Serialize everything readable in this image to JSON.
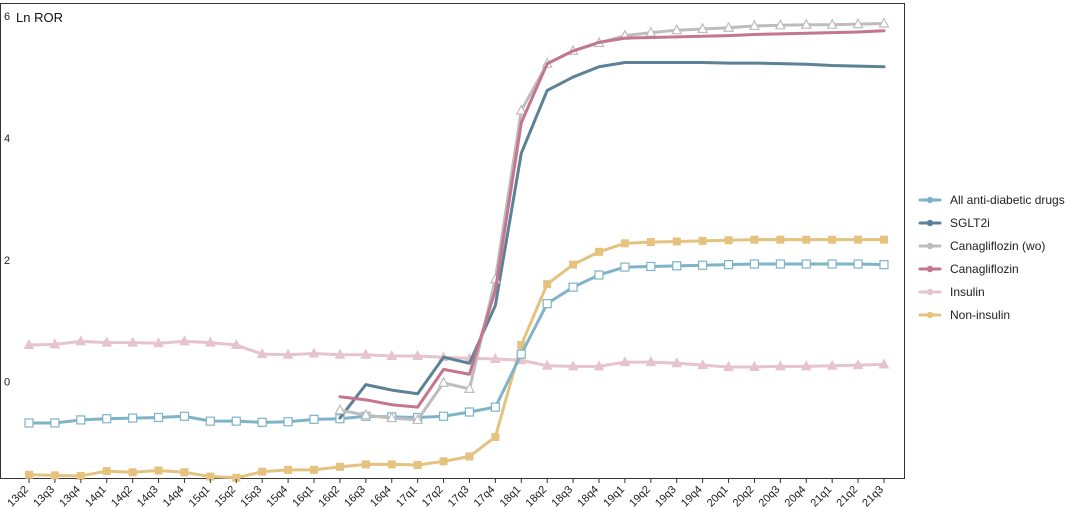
{
  "chart_data": {
    "type": "line",
    "title": "Ln ROR",
    "xlabel": "",
    "ylabel": "",
    "ylim": [
      -1.6,
      6.2
    ],
    "yticks": [
      0,
      2,
      4,
      6
    ],
    "grid": false,
    "legend_position": "right",
    "categories": [
      "13q2",
      "13q3",
      "13q4",
      "14q1",
      "14q2",
      "14q3",
      "14q4",
      "15q1",
      "15q2",
      "15q3",
      "15q4",
      "16q1",
      "16q2",
      "16q3",
      "16q4",
      "17q1",
      "17q2",
      "17q3",
      "17q4",
      "18q1",
      "18q2",
      "18q3",
      "18q4",
      "19q1",
      "19q2",
      "19q3",
      "19q4",
      "20q1",
      "20q2",
      "20q3",
      "20q4",
      "21q1",
      "21q2",
      "21q3"
    ],
    "series": [
      {
        "name": "All anti-diabetic drugs",
        "color": "#7fb3c8",
        "marker": "square-open",
        "values": [
          -0.68,
          -0.68,
          -0.63,
          -0.61,
          -0.6,
          -0.59,
          -0.57,
          -0.65,
          -0.65,
          -0.67,
          -0.66,
          -0.62,
          -0.61,
          -0.57,
          -0.58,
          -0.59,
          -0.57,
          -0.5,
          -0.42,
          0.45,
          1.28,
          1.55,
          1.75,
          1.88,
          1.89,
          1.9,
          1.91,
          1.92,
          1.93,
          1.93,
          1.93,
          1.93,
          1.93,
          1.92
        ]
      },
      {
        "name": "SGLT2i",
        "color": "#5b8296",
        "marker": "none",
        "values": [
          null,
          null,
          null,
          null,
          null,
          null,
          null,
          null,
          null,
          null,
          null,
          null,
          -0.6,
          -0.05,
          -0.14,
          -0.2,
          0.4,
          0.3,
          1.25,
          3.75,
          4.78,
          5.0,
          5.17,
          5.24,
          5.24,
          5.24,
          5.24,
          5.23,
          5.23,
          5.22,
          5.21,
          5.19,
          5.18,
          5.17
        ]
      },
      {
        "name": "Canagliflozin (wo)",
        "color": "#bdbdbd",
        "marker": "triangle-open",
        "values": [
          null,
          null,
          null,
          null,
          null,
          null,
          null,
          null,
          null,
          null,
          null,
          null,
          -0.47,
          -0.55,
          -0.6,
          -0.63,
          -0.02,
          -0.12,
          1.68,
          4.45,
          5.22,
          5.43,
          5.56,
          5.68,
          5.73,
          5.77,
          5.79,
          5.81,
          5.84,
          5.85,
          5.86,
          5.86,
          5.87,
          5.88
        ]
      },
      {
        "name": "Canagliflozin",
        "color": "#c4768f",
        "marker": "none",
        "values": [
          null,
          null,
          null,
          null,
          null,
          null,
          null,
          null,
          null,
          null,
          null,
          null,
          -0.25,
          -0.3,
          -0.38,
          -0.42,
          0.2,
          0.12,
          1.5,
          4.25,
          5.22,
          5.43,
          5.57,
          5.64,
          5.65,
          5.66,
          5.67,
          5.68,
          5.7,
          5.71,
          5.72,
          5.73,
          5.74,
          5.76
        ]
      },
      {
        "name": "Insulin",
        "color": "#e6c3cd",
        "marker": "triangle-filled",
        "values": [
          0.6,
          0.61,
          0.66,
          0.64,
          0.64,
          0.63,
          0.66,
          0.64,
          0.6,
          0.45,
          0.44,
          0.46,
          0.44,
          0.44,
          0.42,
          0.42,
          0.4,
          0.38,
          0.37,
          0.35,
          0.26,
          0.25,
          0.25,
          0.32,
          0.32,
          0.3,
          0.27,
          0.24,
          0.24,
          0.25,
          0.25,
          0.26,
          0.27,
          0.28
        ]
      },
      {
        "name": "Non-insulin",
        "color": "#e6c27f",
        "marker": "square-filled",
        "values": [
          -1.53,
          -1.54,
          -1.55,
          -1.47,
          -1.49,
          -1.46,
          -1.49,
          -1.56,
          -1.58,
          -1.48,
          -1.45,
          -1.45,
          -1.4,
          -1.36,
          -1.36,
          -1.37,
          -1.31,
          -1.23,
          -0.91,
          0.6,
          1.6,
          1.92,
          2.13,
          2.27,
          2.29,
          2.3,
          2.31,
          2.32,
          2.33,
          2.33,
          2.33,
          2.33,
          2.33,
          2.33
        ]
      }
    ]
  }
}
